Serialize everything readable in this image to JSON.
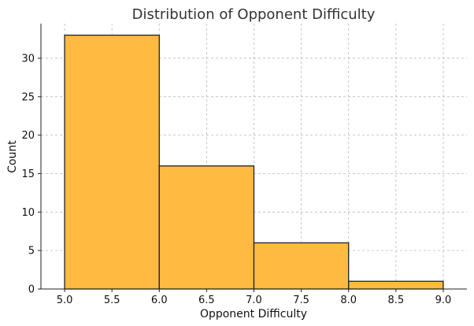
{
  "chart_data": {
    "type": "bar",
    "title": "Distribution of Opponent Difficulty",
    "xlabel": "Opponent Difficulty",
    "ylabel": "Count",
    "bins": [
      {
        "start": 5.0,
        "end": 6.0,
        "count": 33
      },
      {
        "start": 6.0,
        "end": 7.0,
        "count": 16
      },
      {
        "start": 7.0,
        "end": 8.0,
        "count": 6
      },
      {
        "start": 8.0,
        "end": 9.0,
        "count": 1
      }
    ],
    "xlim": [
      4.75,
      9.25
    ],
    "ylim": [
      0,
      34.5
    ],
    "x_ticks": [
      "5.0",
      "5.5",
      "6.0",
      "6.5",
      "7.0",
      "7.5",
      "8.0",
      "8.5",
      "9.0"
    ],
    "y_ticks": [
      "0",
      "5",
      "10",
      "15",
      "20",
      "25",
      "30"
    ],
    "grid": true,
    "bar_color": "#FFBA42",
    "edge_color": "#222222"
  }
}
